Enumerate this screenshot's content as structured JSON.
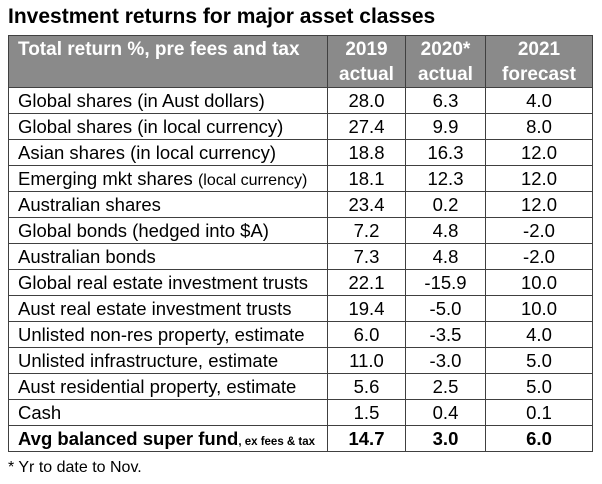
{
  "colors": {
    "header_background": "#8a8a8a",
    "header_text": "#ffffff",
    "grid_lines": "#404040",
    "text": "#000000",
    "page_background": "#ffffff"
  },
  "chart_data": {
    "type": "table",
    "title": "Investment returns for major asset classes",
    "header_label": "Total return %, pre fees and tax",
    "columns": [
      {
        "year": "2019",
        "status": "actual"
      },
      {
        "year": "2020*",
        "status": "actual"
      },
      {
        "year": "2021",
        "status": "forecast"
      }
    ],
    "rows": [
      {
        "label": "Global shares (in Aust dollars)",
        "values": [
          28.0,
          6.3,
          4.0
        ]
      },
      {
        "label": "Global shares (in local currency)",
        "values": [
          27.4,
          9.9,
          8.0
        ]
      },
      {
        "label": "Asian shares (in local currency)",
        "values": [
          18.8,
          16.3,
          12.0
        ]
      },
      {
        "label": "Emerging mkt shares",
        "note": "(local currency)",
        "values": [
          18.1,
          12.3,
          12.0
        ]
      },
      {
        "label": "Australian shares",
        "values": [
          23.4,
          0.2,
          12.0
        ]
      },
      {
        "label": "Global bonds (hedged into $A)",
        "values": [
          7.2,
          4.8,
          -2.0
        ]
      },
      {
        "label": "Australian bonds",
        "values": [
          7.3,
          4.8,
          -2.0
        ]
      },
      {
        "label": "Global real estate investment trusts",
        "values": [
          22.1,
          -15.9,
          10.0
        ]
      },
      {
        "label": "Aust real estate investment trusts",
        "values": [
          19.4,
          -5.0,
          10.0
        ]
      },
      {
        "label": "Unlisted non-res property, estimate",
        "values": [
          6.0,
          -3.5,
          4.0
        ]
      },
      {
        "label": "Unlisted infrastructure, estimate",
        "values": [
          11.0,
          -3.0,
          5.0
        ]
      },
      {
        "label": "Aust residential property, estimate",
        "values": [
          5.6,
          2.5,
          5.0
        ]
      },
      {
        "label": "Cash",
        "values": [
          1.5,
          0.4,
          0.1
        ]
      }
    ],
    "summary_row": {
      "label": "Avg balanced super fund",
      "note": ", ex fees & tax",
      "values": [
        14.7,
        3.0,
        6.0
      ]
    },
    "footnote": "* Yr to date to Nov."
  }
}
